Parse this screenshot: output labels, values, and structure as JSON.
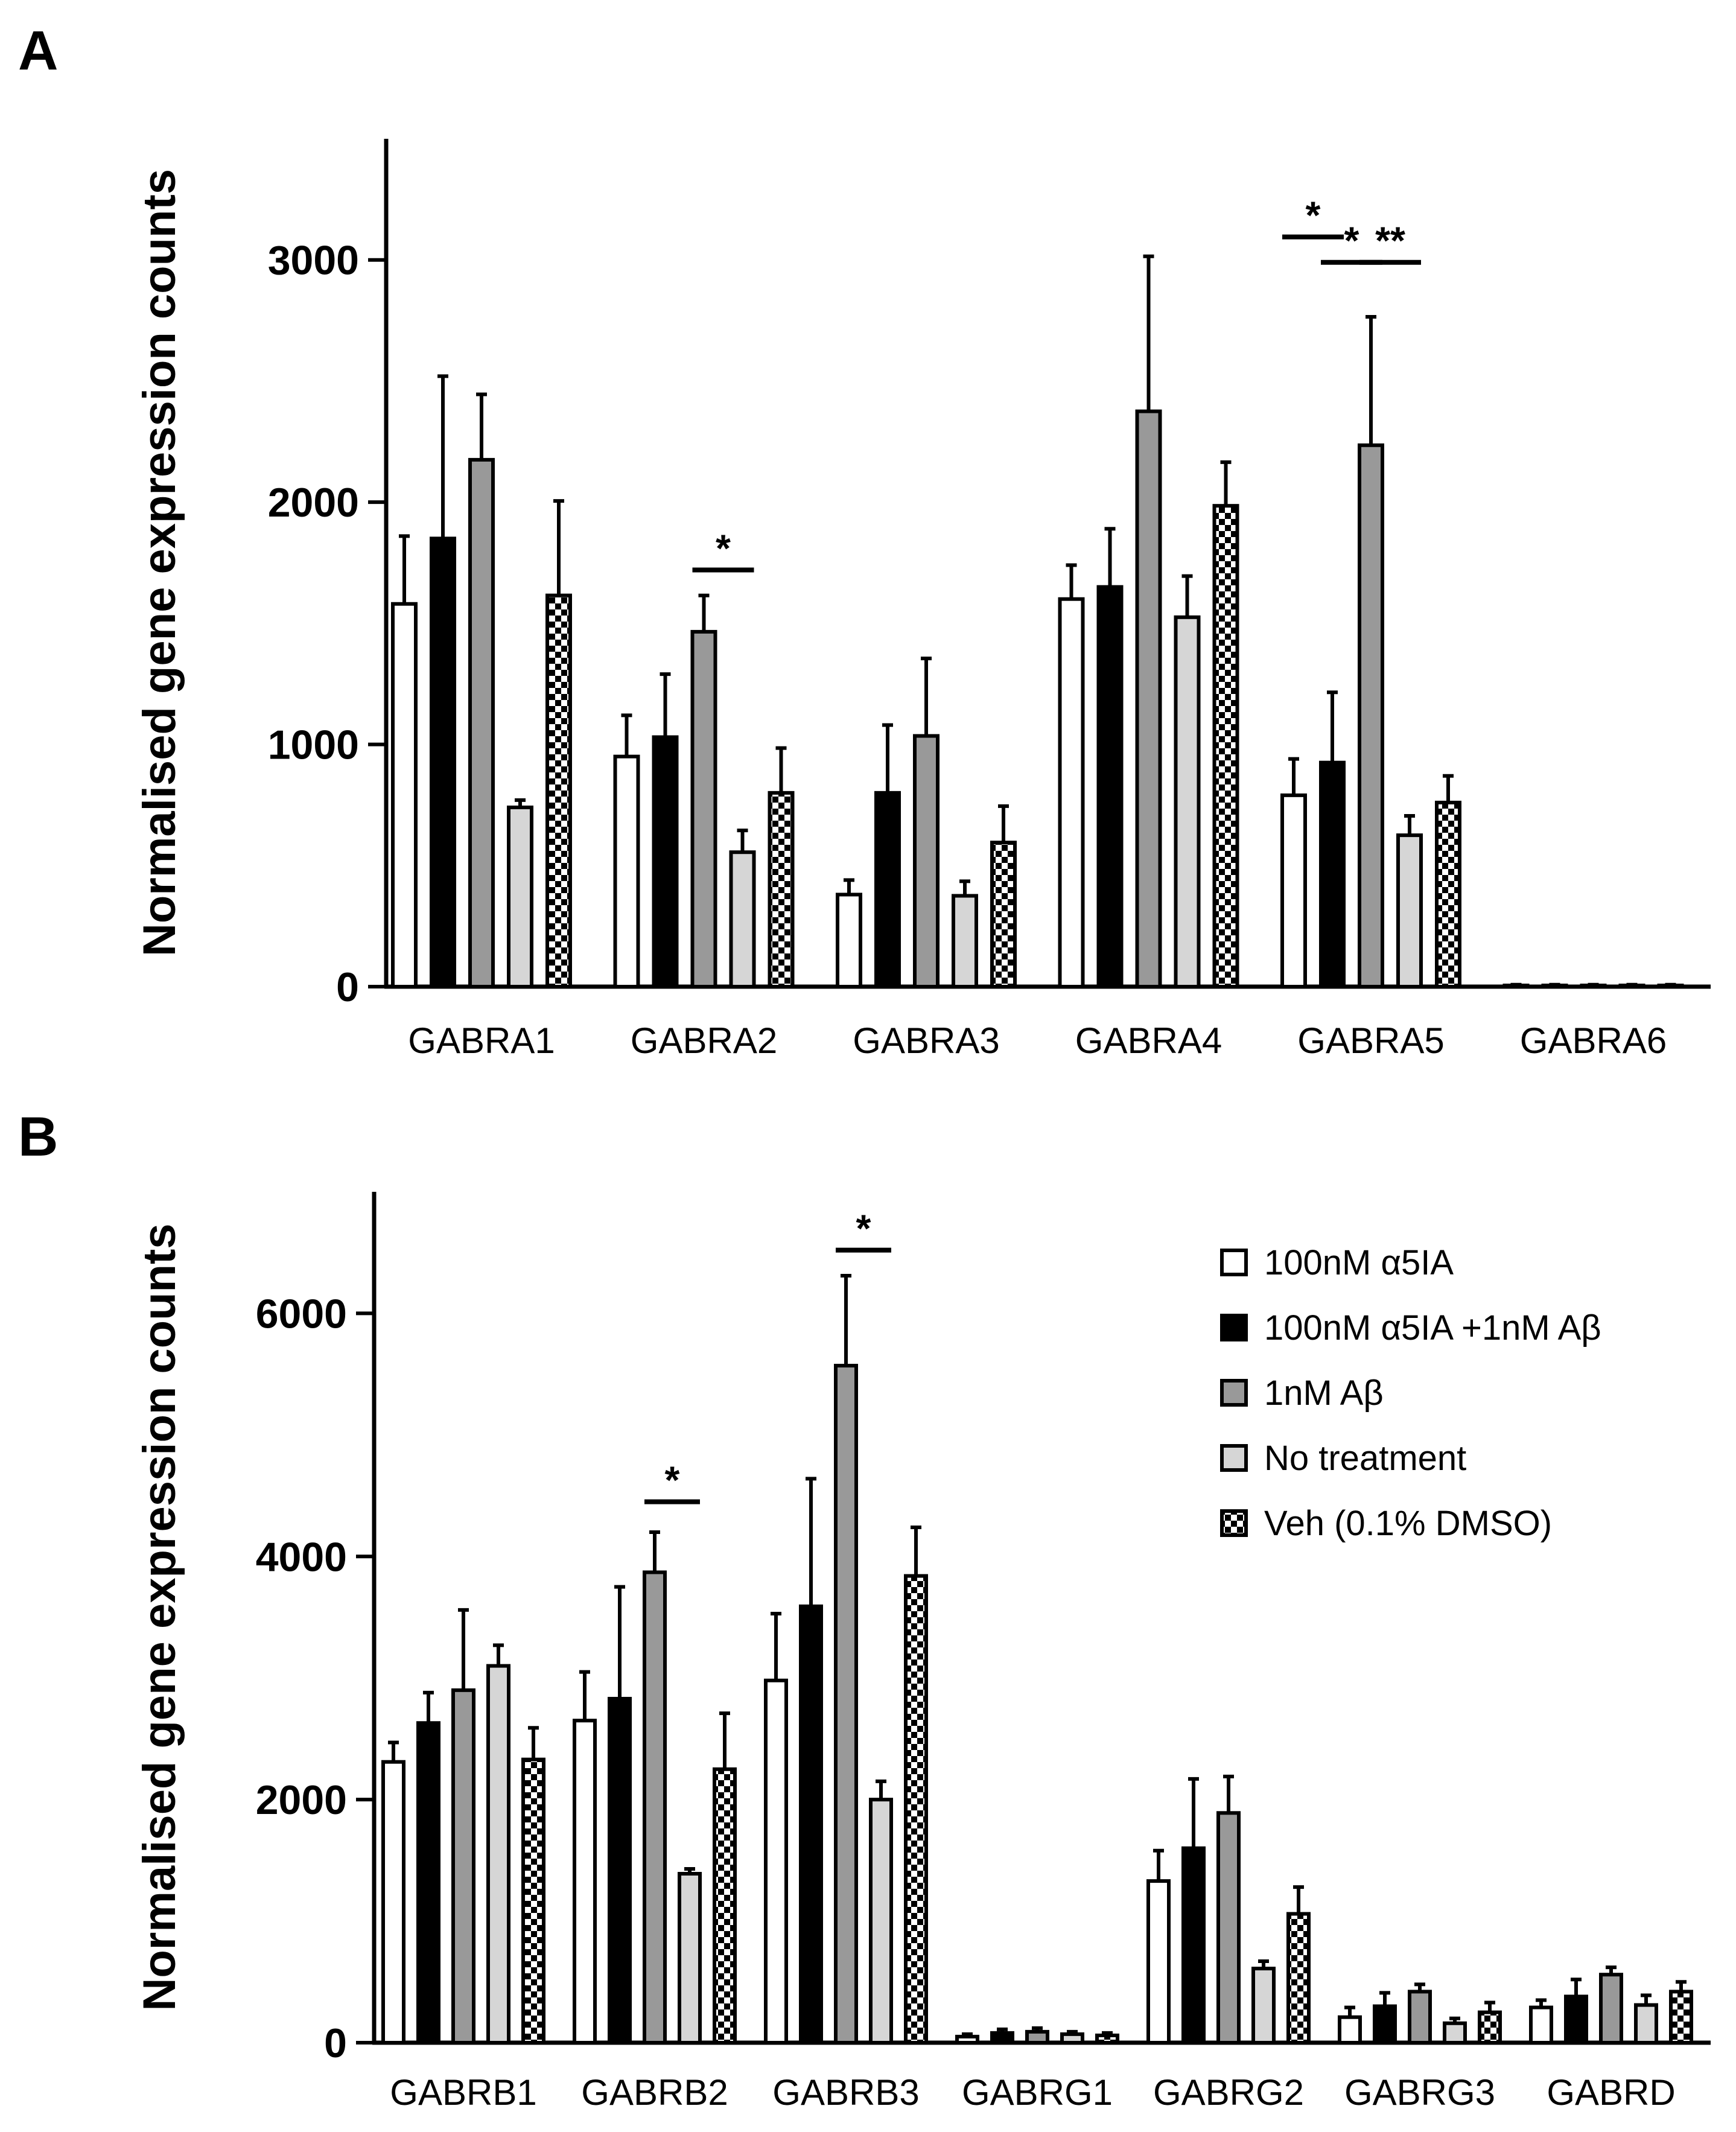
{
  "legend": {
    "items": [
      {
        "label": "100nM α5IA",
        "fill": "#ffffff"
      },
      {
        "label": "100nM α5IA +1nM Aβ",
        "fill": "#000000"
      },
      {
        "label": "1nM Aβ",
        "fill": "#999999"
      },
      {
        "label": "No treatment",
        "fill": "#d6d6d6"
      },
      {
        "label": "Veh (0.1% DMSO)",
        "fill": "checker"
      }
    ]
  },
  "chart_data": [
    {
      "panel": "A",
      "type": "bar",
      "ylabel": "Normalised gene expression counts",
      "ylim": [
        0,
        3500
      ],
      "yticks": [
        0,
        1000,
        2000,
        3000
      ],
      "categories": [
        "GABRA1",
        "GABRA2",
        "GABRA3",
        "GABRA4",
        "GABRA5",
        "GABRA6"
      ],
      "series": [
        {
          "name": "100nM α5IA",
          "values": [
            1580,
            950,
            380,
            1600,
            790,
            5
          ],
          "errors": [
            280,
            170,
            60,
            140,
            150,
            3
          ]
        },
        {
          "name": "100nM α5IA +1nM Aβ",
          "values": [
            1850,
            1030,
            800,
            1650,
            925,
            5
          ],
          "errors": [
            670,
            260,
            280,
            240,
            290,
            3
          ]
        },
        {
          "name": "1nM Aβ",
          "values": [
            2175,
            1465,
            1035,
            2375,
            2235,
            5
          ],
          "errors": [
            270,
            150,
            320,
            640,
            530,
            3
          ]
        },
        {
          "name": "No treatment",
          "values": [
            740,
            555,
            375,
            1525,
            625,
            5
          ],
          "errors": [
            30,
            90,
            60,
            170,
            80,
            3
          ]
        },
        {
          "name": "Veh (0.1% DMSO)",
          "values": [
            1615,
            800,
            595,
            1985,
            760,
            5
          ],
          "errors": [
            390,
            185,
            150,
            180,
            110,
            3
          ]
        }
      ],
      "significance": [
        {
          "category": "GABRA2",
          "from": 2,
          "to": 3,
          "y": 1720,
          "label": "*"
        },
        {
          "category": "GABRA5",
          "from": 0,
          "to": 1,
          "y": 3095,
          "label": "*"
        },
        {
          "category": "GABRA5",
          "from": 1,
          "to": 2,
          "y": 2990,
          "label": "*"
        },
        {
          "category": "GABRA5",
          "from": 2,
          "to": 3,
          "y": 2990,
          "label": "**"
        }
      ]
    },
    {
      "panel": "B",
      "type": "bar",
      "ylabel": "Normalised gene expression counts",
      "ylim": [
        0,
        7000
      ],
      "yticks": [
        0,
        2000,
        4000,
        6000
      ],
      "categories": [
        "GABRB1",
        "GABRB2",
        "GABRB3",
        "GABRG1",
        "GABRG2",
        "GABRG3",
        "GABRD"
      ],
      "series": [
        {
          "name": "100nM α5IA",
          "values": [
            2310,
            2650,
            2980,
            50,
            1330,
            210,
            290
          ],
          "errors": [
            160,
            400,
            550,
            20,
            250,
            80,
            60
          ]
        },
        {
          "name": "100nM α5IA +1nM Aβ",
          "values": [
            2630,
            2830,
            3590,
            80,
            1600,
            300,
            380
          ],
          "errors": [
            250,
            920,
            1050,
            30,
            570,
            110,
            140
          ]
        },
        {
          "name": "1nM Aβ",
          "values": [
            2900,
            3870,
            5570,
            90,
            1890,
            420,
            560
          ],
          "errors": [
            660,
            330,
            740,
            30,
            300,
            60,
            60
          ]
        },
        {
          "name": "No treatment",
          "values": [
            3100,
            1390,
            2000,
            70,
            610,
            160,
            310
          ],
          "errors": [
            170,
            40,
            150,
            20,
            60,
            40,
            80
          ]
        },
        {
          "name": "Veh (0.1% DMSO)",
          "values": [
            2330,
            2250,
            3840,
            60,
            1060,
            250,
            420
          ],
          "errors": [
            260,
            460,
            400,
            20,
            220,
            80,
            80
          ]
        }
      ],
      "significance": [
        {
          "category": "GABRB2",
          "from": 2,
          "to": 3,
          "y": 4450,
          "label": "*"
        },
        {
          "category": "GABRB3",
          "from": 2,
          "to": 3,
          "y": 6520,
          "label": "*"
        }
      ]
    }
  ]
}
